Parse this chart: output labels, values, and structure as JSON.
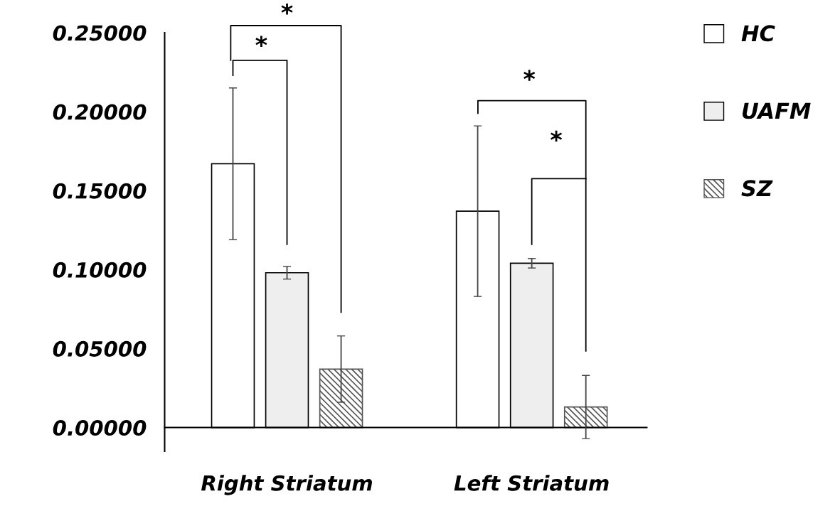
{
  "chart_data": {
    "type": "bar",
    "categories": [
      "Right Striatum",
      "Left Striatum"
    ],
    "series": [
      {
        "name": "HC",
        "color": "#ffffff",
        "values": [
          0.167,
          0.137
        ],
        "errors": [
          0.048,
          0.054
        ]
      },
      {
        "name": "UAFM",
        "color": "#eeeeee",
        "values": [
          0.098,
          0.104
        ],
        "errors": [
          0.004,
          0.003
        ]
      },
      {
        "name": "SZ",
        "color": "#555555",
        "values": [
          0.037,
          0.013
        ],
        "errors": [
          0.021,
          0.02
        ]
      }
    ],
    "ylim": [
      -0.015,
      0.25
    ],
    "yticks": [
      {
        "value": 0,
        "label": "0.00000"
      },
      {
        "value": 0.05,
        "label": "0.05000"
      },
      {
        "value": 0.1,
        "label": "0.10000"
      },
      {
        "value": 0.15,
        "label": "0.15000"
      },
      {
        "value": 0.2,
        "label": "0.20000"
      },
      {
        "value": 0.25,
        "label": "0.25000"
      }
    ],
    "annotations": [
      "*",
      "*",
      "*",
      "*"
    ],
    "legend": "right",
    "grid": false
  }
}
